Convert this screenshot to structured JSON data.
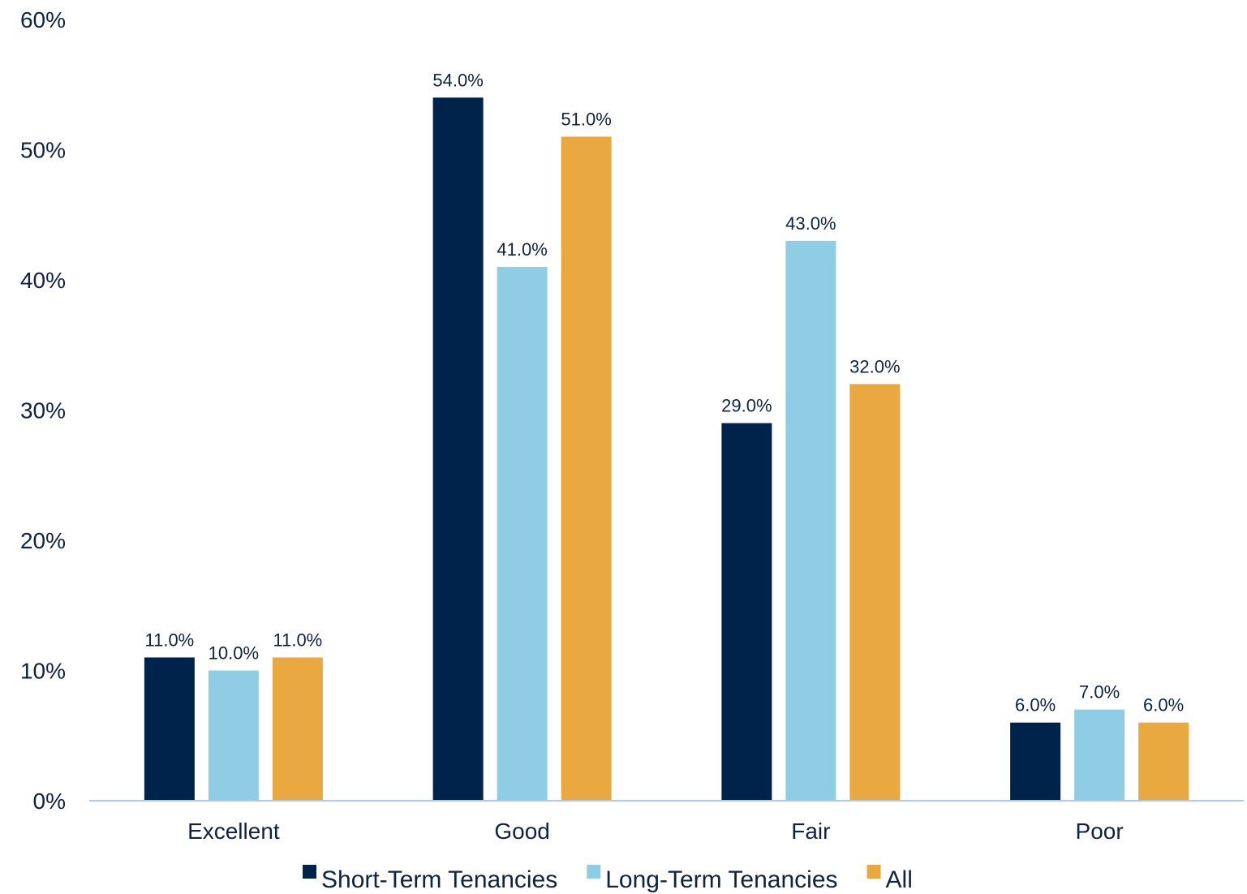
{
  "chart_data": {
    "type": "bar",
    "title": "",
    "xlabel": "",
    "ylabel": "",
    "categories": [
      "Excellent",
      "Good",
      "Fair",
      "Poor"
    ],
    "series": [
      {
        "name": "Short-Term Tenancies",
        "color": "#00234b",
        "values": [
          11.0,
          54.0,
          29.0,
          6.0
        ],
        "labels": [
          "11.0%",
          "54.0%",
          "29.0%",
          "6.0%"
        ]
      },
      {
        "name": "Long-Term Tenancies",
        "color": "#8ecde4",
        "values": [
          10.0,
          41.0,
          43.0,
          7.0
        ],
        "labels": [
          "10.0%",
          "41.0%",
          "43.0%",
          "7.0%"
        ]
      },
      {
        "name": "All",
        "color": "#eaa841",
        "values": [
          11.0,
          51.0,
          32.0,
          6.0
        ],
        "labels": [
          "11.0%",
          "51.0%",
          "32.0%",
          "6.0%"
        ]
      }
    ],
    "ylim": [
      0,
      60
    ],
    "yticks": [
      0,
      10,
      20,
      30,
      40,
      50,
      60
    ],
    "ytick_labels": [
      "0%",
      "10%",
      "20%",
      "30%",
      "40%",
      "50%",
      "60%"
    ],
    "grid": false,
    "legend_position": "bottom",
    "axis_color": "#a9cbe6"
  }
}
